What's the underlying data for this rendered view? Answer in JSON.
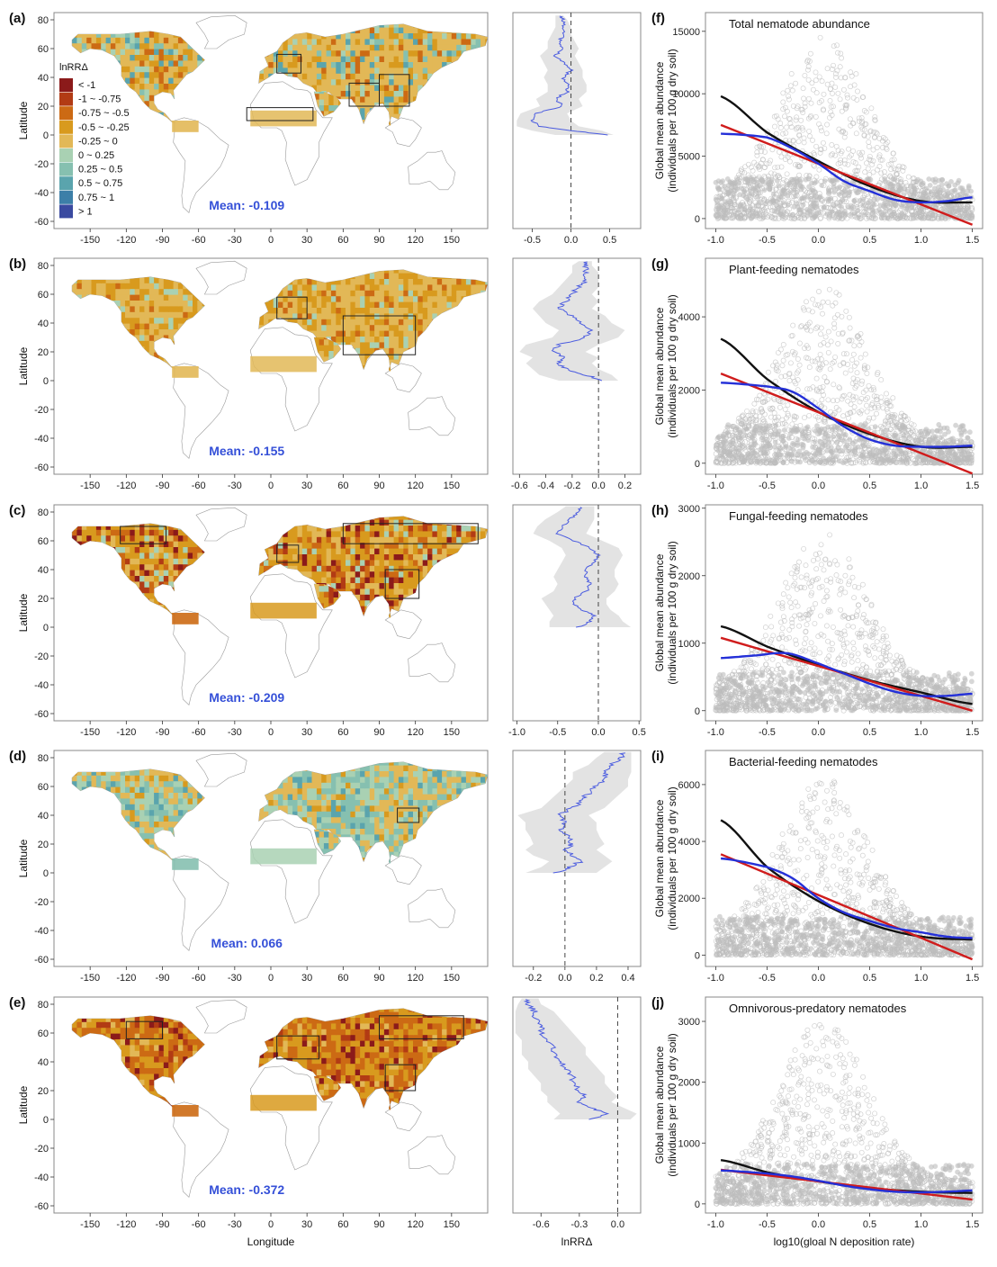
{
  "legend": {
    "title": "lnRRΔ",
    "bins": [
      {
        "label": "< -1",
        "color": "#8b1a1a"
      },
      {
        "label": "-1 ~ -0.75",
        "color": "#b23b14"
      },
      {
        "label": "-0.75 ~ -0.5",
        "color": "#cc6a14"
      },
      {
        "label": "-0.5 ~ -0.25",
        "color": "#d89a1e"
      },
      {
        "label": "-0.25 ~ 0",
        "color": "#e2b857"
      },
      {
        "label": "0 ~ 0.25",
        "color": "#a9d1b3"
      },
      {
        "label": "0.25 ~ 0.5",
        "color": "#86c0b0"
      },
      {
        "label": "0.5 ~ 0.75",
        "color": "#5aa4ad"
      },
      {
        "label": "0.75 ~ 1",
        "color": "#3d7fa8"
      },
      {
        "label": "> 1",
        "color": "#3a4aa0"
      }
    ]
  },
  "colors": {
    "map_primary": "#e2b857",
    "mean_text": "#3550d8",
    "profile_line": "#4a5be0",
    "ci_band": "#e3e3e3",
    "scatter": "#bdbdbd",
    "linear": "#d01c1c",
    "quadratic": "#111111",
    "loess": "#2430d8"
  },
  "chart_data": [
    {
      "panel": "(a)",
      "type": "map",
      "mean_label": "Mean: -0.109",
      "ylabel": "Latitude",
      "xlabel": "",
      "xticks": [
        "-150",
        "-120",
        "-90",
        "-60",
        "-30",
        "0",
        "30",
        "60",
        "90",
        "120",
        "150"
      ],
      "yticks": [
        "80",
        "60",
        "40",
        "20",
        "0",
        "-20",
        "-40",
        "-60"
      ],
      "xlim": [
        -180,
        180
      ],
      "ylim": [
        -65,
        85
      ]
    },
    {
      "panel": "(b)",
      "type": "map",
      "mean_label": "Mean: -0.155",
      "ylabel": "Latitude",
      "xlabel": "",
      "xticks": [
        "-150",
        "-120",
        "-90",
        "-60",
        "-30",
        "0",
        "30",
        "60",
        "90",
        "120",
        "150"
      ],
      "yticks": [
        "80",
        "60",
        "40",
        "20",
        "0",
        "-20",
        "-40",
        "-60"
      ],
      "xlim": [
        -180,
        180
      ],
      "ylim": [
        -65,
        85
      ]
    },
    {
      "panel": "(c)",
      "type": "map",
      "mean_label": "Mean: -0.209",
      "ylabel": "Latitude",
      "xlabel": "",
      "xticks": [
        "-150",
        "-120",
        "-90",
        "-60",
        "-30",
        "0",
        "30",
        "60",
        "90",
        "120",
        "150"
      ],
      "yticks": [
        "80",
        "60",
        "40",
        "20",
        "0",
        "-20",
        "-40",
        "-60"
      ],
      "xlim": [
        -180,
        180
      ],
      "ylim": [
        -65,
        85
      ]
    },
    {
      "panel": "(d)",
      "type": "map",
      "mean_label": "Mean: 0.066",
      "ylabel": "Latitude",
      "xlabel": "",
      "xticks": [
        "-150",
        "-120",
        "-90",
        "-60",
        "-30",
        "0",
        "30",
        "60",
        "90",
        "120",
        "150"
      ],
      "yticks": [
        "80",
        "60",
        "40",
        "20",
        "0",
        "-20",
        "-40",
        "-60"
      ],
      "xlim": [
        -180,
        180
      ],
      "ylim": [
        -65,
        85
      ]
    },
    {
      "panel": "(e)",
      "type": "map",
      "mean_label": "Mean: -0.372",
      "ylabel": "Latitude",
      "xlabel": "Longitude",
      "xticks": [
        "-150",
        "-120",
        "-90",
        "-60",
        "-30",
        "0",
        "30",
        "60",
        "90",
        "120",
        "150"
      ],
      "yticks": [
        "80",
        "60",
        "40",
        "20",
        "0",
        "-20",
        "-40",
        "-60"
      ],
      "xlim": [
        -180,
        180
      ],
      "ylim": [
        -65,
        85
      ]
    },
    {
      "type": "line",
      "profile_of": "(a)",
      "xlim": [
        -0.75,
        0.9
      ],
      "ylim": [
        -65,
        85
      ],
      "xticks": [
        "-0.5",
        "0.0",
        "0.5"
      ],
      "xtick_vals": [
        -0.5,
        0,
        0.5
      ],
      "xlabel": "",
      "lat": [
        0,
        3,
        6,
        10,
        15,
        20,
        25,
        30,
        35,
        40,
        45,
        50,
        55,
        60,
        65,
        70,
        75,
        80,
        83
      ],
      "mean": [
        0.5,
        0.0,
        -0.4,
        -0.5,
        -0.45,
        -0.1,
        -0.2,
        -0.05,
        -0.05,
        -0.1,
        0.0,
        -0.1,
        -0.2,
        -0.1,
        -0.15,
        -0.1,
        -0.1,
        -0.1,
        -0.15
      ],
      "low": [
        -0.2,
        -0.5,
        -0.7,
        -0.7,
        -0.65,
        -0.4,
        -0.45,
        -0.3,
        -0.3,
        -0.35,
        -0.3,
        -0.35,
        -0.4,
        -0.3,
        -0.3,
        -0.25,
        -0.2,
        -0.2,
        -0.2
      ],
      "high": [
        0.55,
        0.4,
        0.1,
        0.0,
        -0.05,
        0.15,
        0.1,
        0.2,
        0.2,
        0.15,
        0.15,
        0.1,
        0.05,
        0.1,
        0.05,
        0.0,
        0.0,
        -0.05,
        -0.1
      ]
    },
    {
      "type": "line",
      "profile_of": "(b)",
      "xlim": [
        -0.65,
        0.32
      ],
      "ylim": [
        -65,
        85
      ],
      "xticks": [
        "-0.6",
        "-0.4",
        "-0.2",
        "0.0",
        "0.2"
      ],
      "xtick_vals": [
        -0.6,
        -0.4,
        -0.2,
        0,
        0.2
      ],
      "xlabel": "",
      "lat": [
        0,
        4,
        8,
        12,
        16,
        20,
        25,
        30,
        35,
        40,
        45,
        50,
        55,
        60,
        65,
        70,
        75,
        80,
        83
      ],
      "mean": [
        0.05,
        -0.1,
        -0.25,
        -0.3,
        -0.25,
        -0.35,
        -0.3,
        -0.1,
        -0.05,
        -0.15,
        -0.2,
        -0.3,
        -0.25,
        -0.2,
        -0.15,
        -0.1,
        -0.1,
        -0.1,
        -0.1
      ],
      "low": [
        -0.3,
        -0.45,
        -0.5,
        -0.55,
        -0.5,
        -0.6,
        -0.55,
        -0.35,
        -0.3,
        -0.4,
        -0.45,
        -0.5,
        -0.45,
        -0.35,
        -0.3,
        -0.25,
        -0.2,
        -0.2,
        -0.15
      ],
      "high": [
        0.15,
        0.1,
        0.0,
        -0.05,
        0.0,
        -0.1,
        0.0,
        0.15,
        0.2,
        0.1,
        0.05,
        -0.05,
        0.0,
        -0.05,
        0.0,
        0.0,
        0.0,
        -0.05,
        -0.05
      ]
    },
    {
      "type": "line",
      "profile_of": "(c)",
      "xlim": [
        -1.05,
        0.52
      ],
      "ylim": [
        -65,
        85
      ],
      "xticks": [
        "-1.0",
        "-0.5",
        "0.0",
        "0.5"
      ],
      "xtick_vals": [
        -1,
        -0.5,
        0,
        0.5
      ],
      "xlabel": "",
      "lat": [
        0,
        4,
        8,
        12,
        16,
        20,
        25,
        30,
        35,
        40,
        45,
        50,
        55,
        60,
        65,
        70,
        75,
        80,
        84
      ],
      "mean": [
        -0.25,
        -0.1,
        -0.05,
        -0.2,
        -0.3,
        -0.3,
        -0.15,
        -0.1,
        -0.15,
        -0.15,
        -0.05,
        0.0,
        -0.1,
        -0.3,
        -0.5,
        -0.45,
        -0.35,
        -0.25,
        -0.2
      ],
      "low": [
        -0.6,
        -0.6,
        -0.55,
        -0.6,
        -0.65,
        -0.7,
        -0.55,
        -0.5,
        -0.55,
        -0.5,
        -0.45,
        -0.4,
        -0.45,
        -0.6,
        -0.8,
        -0.75,
        -0.65,
        -0.5,
        -0.4
      ],
      "high": [
        0.4,
        0.3,
        0.25,
        0.15,
        0.1,
        0.1,
        0.2,
        0.25,
        0.2,
        0.2,
        0.25,
        0.3,
        0.25,
        0.05,
        -0.15,
        -0.1,
        -0.05,
        -0.05,
        -0.05
      ]
    },
    {
      "type": "line",
      "profile_of": "(d)",
      "xlim": [
        -0.33,
        0.48
      ],
      "ylim": [
        -65,
        85
      ],
      "xticks": [
        "-0.2",
        "0.0",
        "0.2",
        "0.4"
      ],
      "xtick_vals": [
        -0.2,
        0,
        0.2,
        0.4
      ],
      "xlabel": "",
      "lat": [
        0,
        4,
        8,
        12,
        16,
        20,
        25,
        30,
        35,
        40,
        45,
        50,
        55,
        60,
        65,
        70,
        75,
        80,
        84
      ],
      "mean": [
        -0.05,
        0.02,
        0.1,
        0.05,
        0.0,
        0.05,
        0.02,
        -0.02,
        0.0,
        -0.05,
        0.05,
        0.1,
        0.15,
        0.2,
        0.25,
        0.25,
        0.3,
        0.35,
        0.38
      ],
      "low": [
        -0.25,
        -0.15,
        -0.1,
        -0.2,
        -0.25,
        -0.2,
        -0.22,
        -0.25,
        -0.25,
        -0.3,
        -0.15,
        -0.1,
        -0.05,
        0.0,
        0.05,
        0.05,
        0.15,
        0.2,
        0.25
      ],
      "high": [
        0.2,
        0.25,
        0.3,
        0.25,
        0.2,
        0.25,
        0.22,
        0.2,
        0.2,
        0.15,
        0.25,
        0.3,
        0.35,
        0.4,
        0.4,
        0.42,
        0.42,
        0.42,
        0.42
      ]
    },
    {
      "type": "line",
      "profile_of": "(e)",
      "xlim": [
        -0.82,
        0.18
      ],
      "ylim": [
        -65,
        85
      ],
      "xticks": [
        "-0.6",
        "-0.3",
        "0.0"
      ],
      "xtick_vals": [
        -0.6,
        -0.3,
        0
      ],
      "xlabel": "lnRRΔ",
      "lat": [
        0,
        4,
        8,
        12,
        16,
        20,
        25,
        30,
        35,
        40,
        45,
        50,
        55,
        60,
        65,
        70,
        75,
        80,
        84
      ],
      "mean": [
        -0.2,
        -0.1,
        -0.2,
        -0.3,
        -0.25,
        -0.3,
        -0.35,
        -0.35,
        -0.4,
        -0.45,
        -0.5,
        -0.5,
        -0.55,
        -0.6,
        -0.6,
        -0.65,
        -0.65,
        -0.7,
        -0.7
      ],
      "low": [
        -0.5,
        -0.45,
        -0.5,
        -0.55,
        -0.55,
        -0.6,
        -0.6,
        -0.65,
        -0.7,
        -0.7,
        -0.75,
        -0.75,
        -0.75,
        -0.8,
        -0.8,
        -0.8,
        -0.8,
        -0.78,
        -0.75
      ],
      "high": [
        0.1,
        0.15,
        0.05,
        -0.05,
        0.0,
        -0.05,
        -0.1,
        -0.1,
        -0.15,
        -0.2,
        -0.25,
        -0.25,
        -0.3,
        -0.35,
        -0.4,
        -0.45,
        -0.5,
        -0.6,
        -0.62
      ]
    },
    {
      "panel": "(f)",
      "type": "scatter",
      "title": "Total nematode abundance",
      "ylabel_lines": [
        "Global mean abundance",
        "(individuals per 100 g dry soil)"
      ],
      "xlabel": "",
      "xlim": [
        -1.1,
        1.6
      ],
      "ylim": [
        -800,
        16500
      ],
      "xticks": [
        "-1.0",
        "-0.5",
        "0.0",
        "0.5",
        "1.0",
        "1.5"
      ],
      "xtick_vals": [
        -1,
        -0.5,
        0,
        0.5,
        1,
        1.5
      ],
      "yticks": [
        "0",
        "5000",
        "10000",
        "15000"
      ],
      "ytick_vals": [
        0,
        5000,
        10000,
        15000
      ],
      "cloud_peak": 14500,
      "fits": {
        "quadratic": {
          "x": [
            -0.95,
            -0.5,
            0,
            0.5,
            1.0,
            1.5
          ],
          "y": [
            9800,
            6900,
            4600,
            2600,
            1400,
            1300
          ]
        },
        "linear": {
          "x": [
            -0.95,
            1.5
          ],
          "y": [
            7500,
            -500
          ]
        },
        "loess": {
          "x": [
            -0.95,
            -0.5,
            -0.25,
            0,
            0.25,
            0.5,
            0.75,
            1.0,
            1.25,
            1.5
          ],
          "y": [
            6800,
            6500,
            5600,
            4400,
            3000,
            2200,
            1500,
            1300,
            1400,
            1700
          ]
        }
      }
    },
    {
      "panel": "(g)",
      "type": "scatter",
      "title": "Plant-feeding nematodes",
      "ylabel_lines": [
        "Global mean abundance",
        "(individuals per 100 g dry soil)"
      ],
      "xlabel": "",
      "xlim": [
        -1.1,
        1.6
      ],
      "ylim": [
        -300,
        5600
      ],
      "xticks": [
        "-1.0",
        "-0.5",
        "0.0",
        "0.5",
        "1.0",
        "1.5"
      ],
      "xtick_vals": [
        -1,
        -0.5,
        0,
        0.5,
        1,
        1.5
      ],
      "yticks": [
        "0",
        "2000",
        "4000"
      ],
      "ytick_vals": [
        0,
        2000,
        4000
      ],
      "cloud_peak": 4800,
      "fits": {
        "quadratic": {
          "x": [
            -0.95,
            -0.5,
            0,
            0.5,
            1.0,
            1.5
          ],
          "y": [
            3400,
            2300,
            1400,
            800,
            450,
            450
          ]
        },
        "linear": {
          "x": [
            -0.95,
            1.5
          ],
          "y": [
            2450,
            -280
          ]
        },
        "loess": {
          "x": [
            -0.95,
            -0.5,
            -0.25,
            0,
            0.25,
            0.5,
            0.75,
            1.0,
            1.25,
            1.5
          ],
          "y": [
            2200,
            2100,
            1950,
            1500,
            1000,
            650,
            480,
            450,
            450,
            480
          ]
        }
      }
    },
    {
      "panel": "(h)",
      "type": "scatter",
      "title": "Fungal-feeding nematodes",
      "ylabel_lines": [
        "Global mean abundance",
        "(individuals per 100 g dry soil)"
      ],
      "xlabel": "",
      "xlim": [
        -1.1,
        1.6
      ],
      "ylim": [
        -150,
        3050
      ],
      "xticks": [
        "-1.0",
        "-0.5",
        "0.0",
        "0.5",
        "1.0",
        "1.5"
      ],
      "xtick_vals": [
        -1,
        -0.5,
        0,
        0.5,
        1,
        1.5
      ],
      "yticks": [
        "0",
        "1000",
        "2000",
        "3000"
      ],
      "ytick_vals": [
        0,
        1000,
        2000,
        3000
      ],
      "cloud_peak": 2600,
      "fits": {
        "quadratic": {
          "x": [
            -0.95,
            -0.5,
            0,
            0.5,
            1.0,
            1.5
          ],
          "y": [
            1250,
            950,
            680,
            450,
            270,
            100
          ]
        },
        "linear": {
          "x": [
            -0.95,
            1.5
          ],
          "y": [
            1080,
            0
          ]
        },
        "loess": {
          "x": [
            -0.95,
            -0.6,
            -0.3,
            0,
            0.25,
            0.5,
            0.75,
            1.0,
            1.25,
            1.5
          ],
          "y": [
            780,
            820,
            850,
            700,
            550,
            400,
            280,
            220,
            220,
            250
          ]
        }
      }
    },
    {
      "panel": "(i)",
      "type": "scatter",
      "title": "Bacterial-feeding nematodes",
      "ylabel_lines": [
        "Global mean abundance",
        "(individuals per 100 g dry soil)"
      ],
      "xlabel": "",
      "xlim": [
        -1.1,
        1.6
      ],
      "ylim": [
        -400,
        7200
      ],
      "xticks": [
        "-1.0",
        "-0.5",
        "0.0",
        "0.5",
        "1.0",
        "1.5"
      ],
      "xtick_vals": [
        -1,
        -0.5,
        0,
        0.5,
        1,
        1.5
      ],
      "yticks": [
        "0",
        "2000",
        "4000",
        "6000"
      ],
      "ytick_vals": [
        0,
        2000,
        4000,
        6000
      ],
      "cloud_peak": 6200,
      "fits": {
        "quadratic": {
          "x": [
            -0.95,
            -0.5,
            0,
            0.5,
            1.0,
            1.5
          ],
          "y": [
            4750,
            3100,
            1900,
            1100,
            650,
            550
          ]
        },
        "linear": {
          "x": [
            -0.95,
            1.5
          ],
          "y": [
            3550,
            -150
          ]
        },
        "loess": {
          "x": [
            -0.95,
            -0.5,
            -0.25,
            0,
            0.25,
            0.5,
            0.75,
            1.0,
            1.25,
            1.5
          ],
          "y": [
            3400,
            3100,
            2700,
            2000,
            1500,
            1200,
            950,
            800,
            650,
            600
          ]
        }
      }
    },
    {
      "panel": "(j)",
      "type": "scatter",
      "title": "Omnivorous-predatory nematodes",
      "ylabel_lines": [
        "Global mean abundance",
        "(individuals per 100 g dry soil)"
      ],
      "xlabel": "log10(gloal N deposition rate)",
      "xlim": [
        -1.1,
        1.6
      ],
      "ylim": [
        -150,
        3400
      ],
      "xticks": [
        "-1.0",
        "-0.5",
        "0.0",
        "0.5",
        "1.0",
        "1.5"
      ],
      "xtick_vals": [
        -1,
        -0.5,
        0,
        0.5,
        1,
        1.5
      ],
      "yticks": [
        "0",
        "1000",
        "2000",
        "3000"
      ],
      "ytick_vals": [
        0,
        1000,
        2000,
        3000
      ],
      "cloud_peak": 3000,
      "fits": {
        "quadratic": {
          "x": [
            -0.95,
            -0.5,
            0,
            0.5,
            1.0,
            1.5
          ],
          "y": [
            720,
            520,
            370,
            260,
            200,
            180
          ]
        },
        "linear": {
          "x": [
            -0.95,
            1.5
          ],
          "y": [
            560,
            70
          ]
        },
        "loess": {
          "x": [
            -0.95,
            -0.5,
            -0.25,
            0,
            0.25,
            0.5,
            0.75,
            1.0,
            1.25,
            1.5
          ],
          "y": [
            550,
            500,
            450,
            380,
            300,
            240,
            200,
            190,
            200,
            220
          ]
        }
      }
    }
  ]
}
